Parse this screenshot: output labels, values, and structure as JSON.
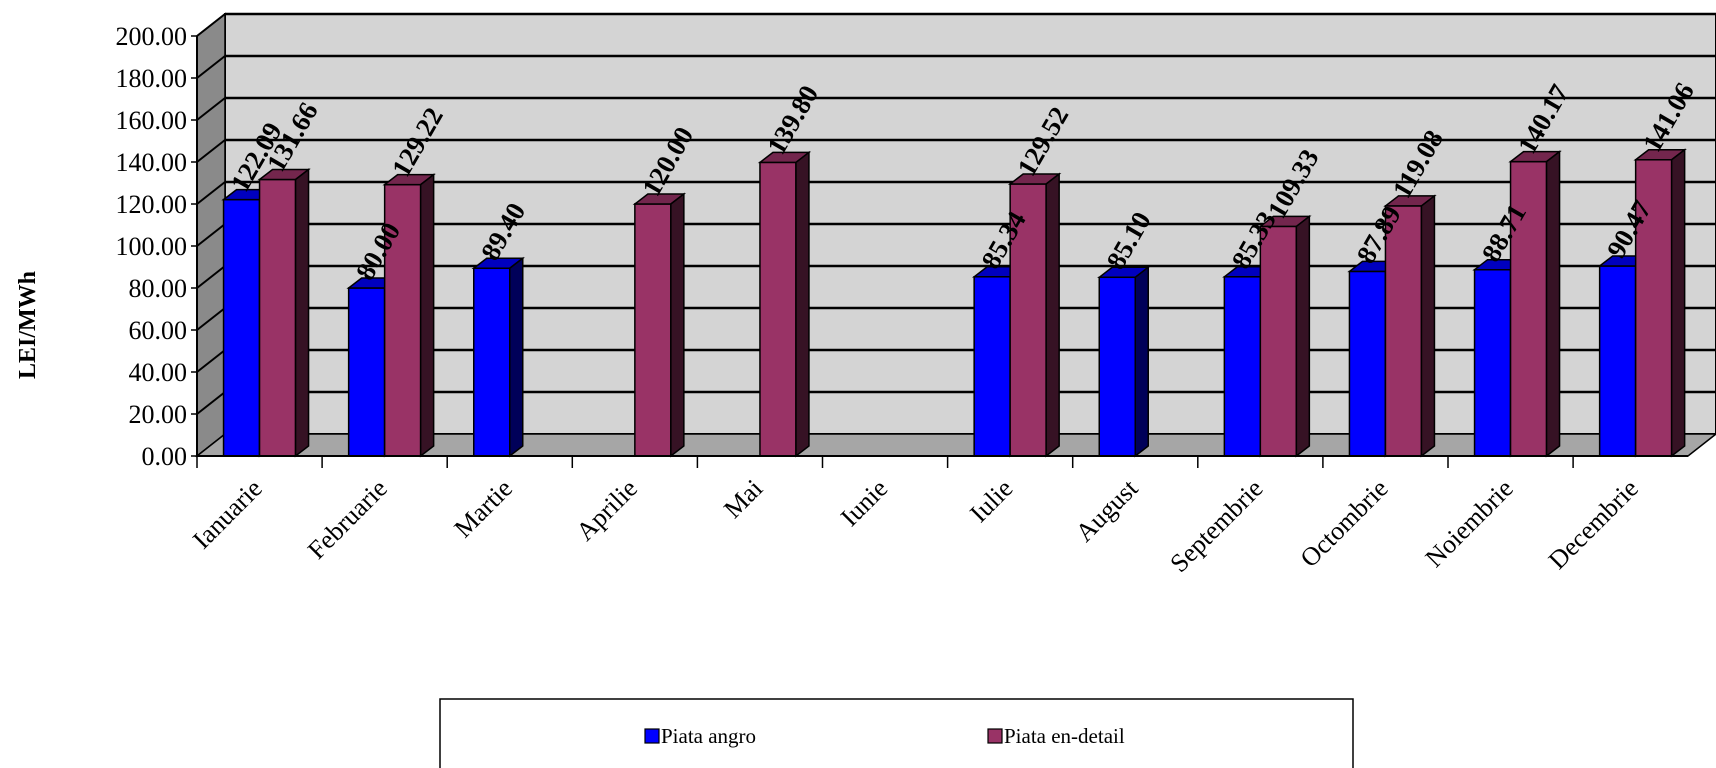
{
  "chart_data": {
    "type": "bar",
    "ylabel": "LEI/MWh",
    "ylim": [
      0,
      200
    ],
    "ytick_step": 20,
    "ytick_labels": [
      "0.00",
      "20.00",
      "40.00",
      "60.00",
      "80.00",
      "100.00",
      "120.00",
      "140.00",
      "160.00",
      "180.00",
      "200.00"
    ],
    "categories": [
      "Ianuarie",
      "Februarie",
      "Martie",
      "Aprilie",
      "Mai",
      "Iunie",
      "Iulie",
      "August",
      "Septembrie",
      "Octombrie",
      "Noiembrie",
      "Decembrie"
    ],
    "series": [
      {
        "name": "Piata angro",
        "color": "#0000FF",
        "values": [
          122.09,
          80.0,
          89.4,
          null,
          null,
          null,
          85.34,
          85.1,
          85.33,
          87.89,
          88.71,
          90.47
        ],
        "labels": [
          "122.09",
          "80.00",
          "89.40",
          "",
          "",
          "",
          "85.34",
          "85.10",
          "85.33",
          "87.89",
          "88.71",
          "90.47"
        ]
      },
      {
        "name": "Piata en-detail",
        "color": "#993366",
        "values": [
          131.66,
          129.22,
          null,
          120.0,
          139.8,
          null,
          129.52,
          null,
          109.33,
          119.08,
          140.17,
          141.06
        ],
        "labels": [
          "131.66",
          "129.22",
          "",
          "120.00",
          "139.80",
          "",
          "129.52",
          "",
          "109.33",
          "119.08",
          "140.17",
          "141.06"
        ]
      }
    ],
    "grid": true,
    "legend_position": "bottom"
  }
}
